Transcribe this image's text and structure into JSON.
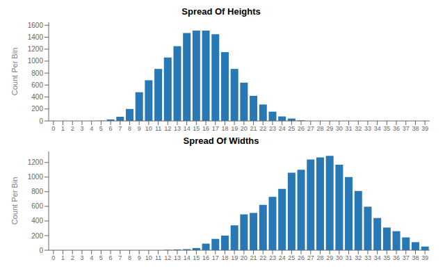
{
  "chart_data": [
    {
      "type": "bar",
      "title": "Spread Of Heights",
      "ylabel": "Count Per Bin",
      "categories": [
        "0",
        "1",
        "2",
        "3",
        "4",
        "5",
        "6",
        "7",
        "8",
        "9",
        "10",
        "11",
        "12",
        "13",
        "14",
        "15",
        "16",
        "17",
        "18",
        "19",
        "20",
        "21",
        "22",
        "23",
        "24",
        "25",
        "26",
        "27",
        "28",
        "29",
        "30",
        "31",
        "32",
        "33",
        "34",
        "35",
        "36",
        "37",
        "38",
        "39"
      ],
      "values": [
        0,
        0,
        0,
        0,
        0,
        3,
        25,
        70,
        200,
        480,
        680,
        870,
        1060,
        1250,
        1470,
        1510,
        1510,
        1450,
        1150,
        870,
        640,
        420,
        275,
        155,
        75,
        40,
        10,
        0,
        0,
        0,
        0,
        0,
        0,
        0,
        0,
        0,
        0,
        0,
        0,
        0
      ],
      "color": "#2878b5",
      "ylim": [
        0,
        1650
      ],
      "yticks": [
        0,
        200,
        400,
        600,
        800,
        1000,
        1200,
        1400,
        1600
      ],
      "grid": false
    },
    {
      "type": "bar",
      "title": "Spread Of Widths",
      "ylabel": "Count Per Bin",
      "categories": [
        "0",
        "1",
        "2",
        "3",
        "4",
        "5",
        "6",
        "7",
        "8",
        "9",
        "10",
        "11",
        "12",
        "13",
        "14",
        "15",
        "16",
        "17",
        "18",
        "19",
        "20",
        "21",
        "22",
        "23",
        "24",
        "25",
        "26",
        "27",
        "28",
        "29",
        "30",
        "31",
        "32",
        "33",
        "34",
        "35",
        "36",
        "37",
        "38",
        "39"
      ],
      "values": [
        0,
        0,
        0,
        0,
        0,
        0,
        0,
        0,
        0,
        0,
        0,
        0,
        5,
        10,
        15,
        30,
        90,
        155,
        200,
        340,
        490,
        510,
        620,
        730,
        840,
        1060,
        1100,
        1240,
        1270,
        1290,
        1170,
        1000,
        810,
        595,
        440,
        310,
        260,
        175,
        110,
        50
      ],
      "color": "#2878b5",
      "ylim": [
        0,
        1350
      ],
      "yticks": [
        0,
        200,
        400,
        600,
        800,
        1000,
        1200
      ],
      "grid": false
    }
  ]
}
